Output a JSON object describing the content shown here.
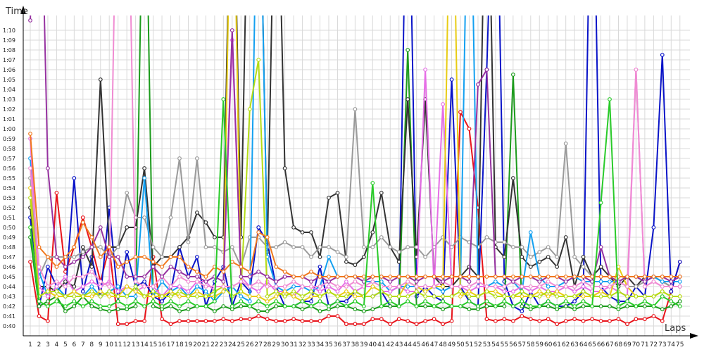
{
  "chart_data": {
    "type": "line",
    "ylabel": "Time",
    "xlabel": "Laps",
    "x": [
      1,
      2,
      3,
      4,
      5,
      6,
      7,
      8,
      9,
      10,
      11,
      12,
      13,
      14,
      15,
      16,
      17,
      18,
      19,
      20,
      21,
      22,
      23,
      24,
      25,
      26,
      27,
      28,
      29,
      30,
      31,
      32,
      33,
      34,
      35,
      36,
      37,
      38,
      39,
      40,
      41,
      42,
      43,
      44,
      45,
      46,
      47,
      48,
      49,
      50,
      51,
      52,
      53,
      54,
      55,
      56,
      57,
      58,
      59,
      60,
      61,
      62,
      63,
      64,
      65,
      66,
      67,
      68,
      69,
      70,
      71,
      72,
      73,
      74,
      75
    ],
    "y_ticks": [
      "0:40",
      "0:41",
      "0:42",
      "0:43",
      "0:44",
      "0:45",
      "0:46",
      "0:47",
      "0:48",
      "0:49",
      "0:50",
      "0:51",
      "0:52",
      "0:53",
      "0:54",
      "0:55",
      "0:56",
      "0:57",
      "0:58",
      "0:59",
      "1:00",
      "1:01",
      "1:02",
      "1:03",
      "1:04",
      "1:05",
      "1:06",
      "1:07",
      "1:08",
      "1:09",
      "1:10"
    ],
    "ylim_seconds": [
      39,
      71.5
    ],
    "grid": true,
    "legend": "none",
    "series": [
      {
        "color": "#e8141b",
        "values": [
          46.5,
          41,
          40.5,
          53.5,
          45.5,
          48,
          51,
          48,
          44.5,
          48,
          40.2,
          40.2,
          40.5,
          40.5,
          47,
          40.7,
          40.2,
          40.5,
          40.5,
          40.5,
          40.5,
          40.5,
          40.7,
          40.5,
          40.7,
          40.7,
          41,
          40.7,
          40.5,
          40.5,
          40.7,
          40.5,
          40.5,
          40.5,
          41,
          41,
          40.2,
          40.2,
          40.2,
          40.7,
          40.7,
          40.2,
          40.7,
          40.5,
          40.2,
          40.5,
          40.7,
          40.2,
          40.5,
          61.7,
          60,
          52,
          40.7,
          40.5,
          40.7,
          40.5,
          41,
          40.7,
          40.5,
          40.7,
          40.2,
          40.5,
          40.7,
          40.5,
          40.7,
          40.5,
          40.5,
          40.7,
          40.2,
          40.7,
          40.7,
          41,
          40.5,
          43.5,
          46.5
        ]
      },
      {
        "color": "#0a14c8",
        "values": [
          51,
          42,
          46,
          44,
          43,
          55,
          43.5,
          47,
          43,
          52,
          42.5,
          47.5,
          44,
          44.5,
          43,
          42.5,
          43.5,
          48,
          45,
          47,
          42,
          44.5,
          46,
          42,
          44.5,
          43.5,
          50,
          48.5,
          44,
          42,
          42,
          42.5,
          42.5,
          46,
          42,
          42.5,
          42.5,
          43.5,
          43,
          43,
          43.5,
          42,
          42,
          95,
          43,
          44,
          43,
          42.5,
          65,
          44,
          42.5,
          42,
          66,
          95,
          44.5,
          42,
          41.5,
          43.5,
          42,
          42.5,
          42,
          42,
          42.5,
          43.5,
          95,
          44,
          43,
          42.5,
          42.5,
          44,
          43,
          50,
          67.5,
          43.5,
          46.5
        ]
      },
      {
        "color": "#1c9b1c",
        "values": [
          49,
          42,
          42.5,
          43,
          41.5,
          42,
          43,
          42,
          41.7,
          41.5,
          41.7,
          41.7,
          42,
          95,
          42,
          41.7,
          42,
          41.5,
          41.7,
          42,
          42,
          41.5,
          42,
          41.7,
          42,
          42,
          41.5,
          41.5,
          42,
          42,
          42,
          41.7,
          42,
          41.5,
          41.7,
          42,
          42,
          41.7,
          41.5,
          41.7,
          42,
          42,
          42,
          68,
          42,
          42,
          42,
          41.7,
          42,
          42,
          41.7,
          41.7,
          42,
          42,
          42,
          65.5,
          42,
          41.7,
          42,
          42,
          41.7,
          42,
          41.7,
          42,
          42,
          42,
          42,
          41.7,
          42,
          42,
          42,
          42,
          41.7,
          42,
          42.5
        ]
      },
      {
        "color": "#333333",
        "values": [
          52,
          44,
          44,
          43.5,
          44.5,
          44,
          48,
          46,
          65,
          48,
          48,
          50,
          50,
          56,
          46,
          47,
          47,
          48,
          49,
          51.5,
          50.5,
          49,
          49,
          95,
          49,
          95,
          95,
          47.5,
          95,
          56,
          50,
          49.5,
          49.5,
          47,
          53,
          53.5,
          46.5,
          46.2,
          47,
          49.5,
          53.5,
          48,
          46.5,
          63,
          47,
          63,
          45,
          44,
          44,
          45,
          46,
          45,
          95,
          48,
          47,
          55,
          47,
          46,
          46.5,
          47,
          46,
          49,
          44,
          47,
          45,
          46,
          45,
          44,
          45,
          44,
          45,
          45,
          44.5,
          44,
          44
        ]
      },
      {
        "color": "#9a9a9a",
        "values": [
          55,
          45,
          47,
          47,
          47,
          47,
          47.5,
          48,
          48,
          47,
          48,
          53.5,
          51,
          51,
          48,
          47,
          51,
          57,
          48.5,
          57,
          48,
          48,
          47.5,
          48,
          46,
          49,
          49,
          48,
          48,
          48.5,
          48,
          48,
          47,
          48,
          48,
          47.5,
          47,
          62,
          48,
          48,
          49,
          48,
          47.5,
          48,
          48,
          47,
          48,
          49,
          48,
          49,
          48.5,
          48,
          49,
          48.5,
          48.5,
          48,
          48,
          47,
          47.5,
          48,
          47,
          58.5,
          47,
          46,
          45,
          45,
          45,
          44.5,
          44,
          44,
          44.5,
          45,
          44.5,
          44,
          44
        ]
      },
      {
        "color": "#14a0f0",
        "values": [
          57,
          45.5,
          43,
          44,
          43,
          43.5,
          43,
          44,
          43,
          43.5,
          44,
          43,
          43,
          55,
          43,
          44.5,
          43.5,
          44,
          43,
          44,
          43.5,
          42.5,
          43.5,
          44,
          43,
          42.5,
          95,
          47,
          44,
          43.5,
          44,
          44,
          43.5,
          44,
          47,
          45,
          45,
          45,
          44.5,
          44.5,
          44.5,
          43.5,
          44,
          44,
          44,
          43.5,
          44,
          43.5,
          44,
          44,
          95,
          44,
          44,
          44.5,
          44,
          44.5,
          43.5,
          49.5,
          45,
          44,
          44,
          44.5,
          45,
          44.5,
          44.5,
          44.5,
          44.5,
          44.5,
          45,
          45,
          44.5,
          45,
          44.5,
          44.5,
          44.5
        ]
      },
      {
        "color": "#e66ee6",
        "values": [
          59,
          44,
          43,
          44,
          45,
          43.5,
          44,
          44.5,
          44,
          44.5,
          43.5,
          44,
          43.5,
          44,
          44,
          43,
          44,
          44,
          43.5,
          44.5,
          44.5,
          43.5,
          44,
          69,
          45,
          44,
          43.5,
          44.5,
          43.5,
          43.5,
          43,
          44,
          44,
          43.5,
          44,
          43.5,
          44.5,
          43.5,
          44,
          44,
          43.5,
          43.5,
          44,
          43.5,
          43.5,
          66,
          44,
          62.5,
          44,
          44,
          43.5,
          44,
          44,
          44,
          43.5,
          43.5,
          44,
          43.5,
          44,
          43.5,
          43.5,
          44,
          43.5,
          44,
          43.5,
          43.5,
          44,
          43.5,
          43,
          66,
          44,
          44.5,
          44,
          44,
          44
        ]
      },
      {
        "color": "#e8cc14",
        "values": [
          54,
          43,
          43.5,
          43,
          43,
          43.5,
          43,
          43,
          43.5,
          43,
          43,
          44,
          43.5,
          43,
          43,
          43,
          43.5,
          43,
          43,
          43.5,
          43,
          43,
          43.5,
          95,
          43.5,
          43,
          43,
          42.5,
          43,
          43.5,
          43,
          42.5,
          43,
          43,
          43.5,
          43,
          43.5,
          43,
          43,
          44,
          43.5,
          43,
          43,
          44.5,
          44,
          43.5,
          44,
          44,
          95,
          43,
          43.5,
          43,
          43.5,
          43.5,
          43,
          43,
          43,
          43,
          43.5,
          43,
          43.5,
          43,
          43,
          43,
          43,
          43.5,
          43,
          46,
          44,
          43,
          43,
          43,
          43.5,
          43,
          43
        ]
      },
      {
        "color": "#b4dc14",
        "values": [
          53,
          43,
          43.5,
          43.5,
          43,
          43,
          43,
          43.5,
          43,
          43.5,
          43,
          43,
          44,
          43,
          43.5,
          43,
          43,
          43.5,
          43,
          43,
          43,
          43.5,
          44,
          43,
          43.5,
          62,
          67,
          43,
          43.5,
          43,
          43.5,
          43,
          43.5,
          43,
          43.5,
          43,
          43,
          43.5,
          43,
          43,
          43.5,
          43,
          43,
          43,
          43.5,
          43,
          43,
          43,
          43,
          43.5,
          43,
          43,
          43.5,
          43,
          43,
          43,
          43.5,
          43,
          43,
          43.5,
          43,
          43,
          43,
          43.5,
          43,
          43,
          43,
          43.5,
          43,
          43,
          43,
          43,
          43.5,
          43,
          43
        ]
      },
      {
        "color": "#f08cd2",
        "values": [
          56,
          46,
          44,
          44.5,
          44,
          45,
          45,
          45.5,
          44.5,
          44,
          95,
          95,
          44.5,
          44,
          44,
          45,
          44,
          45,
          44.5,
          44.5,
          44,
          44,
          44,
          44,
          44.5,
          44,
          44.5,
          44,
          44,
          44,
          44.5,
          44,
          44,
          44,
          44.5,
          44,
          44,
          44.5,
          44,
          44.5,
          44,
          44,
          44,
          44.5,
          44,
          44,
          44,
          44.5,
          44,
          44,
          44,
          44.5,
          44,
          44,
          44,
          44.5,
          44,
          44,
          44,
          44.5,
          44,
          44,
          44,
          44.5,
          44,
          44,
          44,
          44.5,
          44,
          66,
          44,
          44.5,
          44,
          44,
          44
        ]
      },
      {
        "color": "#9632a0",
        "values": [
          71,
          95,
          56,
          47,
          46,
          46.5,
          47,
          48,
          50,
          47,
          47,
          45,
          45,
          45,
          46,
          45,
          46,
          45.5,
          45,
          45,
          44.5,
          45,
          44.5,
          70,
          45,
          45,
          45.5,
          45,
          44.5,
          45,
          45,
          45,
          44.5,
          45,
          44.5,
          45,
          45,
          45,
          44.5,
          45,
          45,
          44.5,
          45,
          45,
          44.5,
          45,
          45,
          44.5,
          45,
          45,
          44.5,
          64.5,
          66,
          45,
          45,
          44.5,
          45,
          45,
          44.5,
          45,
          45,
          44.5,
          45,
          45,
          44.5,
          48,
          45,
          44.5,
          45,
          45,
          44.5,
          45,
          45,
          44.5,
          45
        ]
      },
      {
        "color": "#f0781e",
        "values": [
          59.5,
          48,
          47,
          46,
          47,
          48,
          50.5,
          49,
          47,
          48,
          46,
          46.5,
          47,
          47,
          46.5,
          46,
          47,
          47,
          46,
          45.5,
          45,
          46,
          45.5,
          46.5,
          46,
          45.5,
          49.5,
          49,
          46,
          45.5,
          45,
          45,
          45.5,
          45,
          45,
          45,
          45,
          45,
          45,
          45,
          45,
          45,
          45,
          45,
          45,
          45,
          45,
          45,
          45,
          45,
          45,
          45,
          45,
          45,
          45,
          45,
          45,
          45,
          45,
          45,
          45,
          45,
          45,
          45,
          45,
          45,
          45,
          45,
          45,
          45,
          45,
          45,
          45,
          45,
          45
        ]
      },
      {
        "color": "#2acb2a",
        "values": [
          50,
          42.5,
          42,
          42.5,
          42,
          42.5,
          42,
          42.5,
          42,
          42,
          42.5,
          42,
          42.5,
          42,
          42.5,
          42,
          42.5,
          42,
          42.5,
          42,
          42,
          42.5,
          63,
          42,
          42.5,
          42,
          42.5,
          42,
          42.5,
          42,
          42,
          42.5,
          42,
          42.5,
          42,
          42.5,
          42,
          42.5,
          42,
          54.5,
          42,
          42.5,
          42,
          42.5,
          42,
          42.5,
          42,
          42.5,
          42,
          42,
          42.5,
          42,
          42.5,
          42,
          42.5,
          42,
          42.5,
          42,
          42,
          42.5,
          42,
          42.5,
          42,
          42.5,
          42,
          52.5,
          63,
          42,
          42.5,
          42,
          42.5,
          42,
          43,
          42.5,
          42
        ]
      }
    ]
  }
}
